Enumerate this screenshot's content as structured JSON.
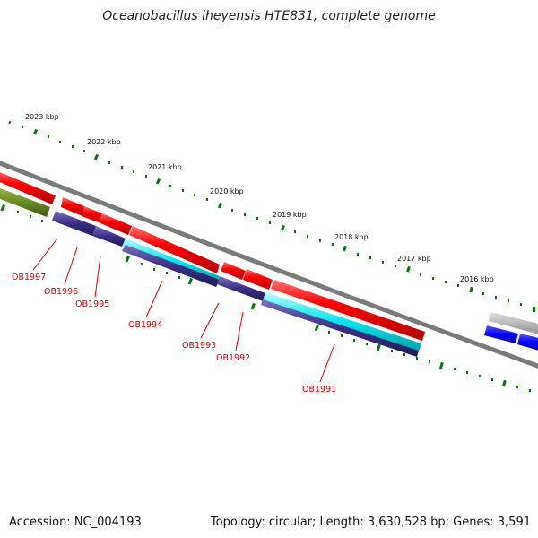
{
  "title": "Oceanobacillus iheyensis HTE831, complete genome",
  "accession": "Accession: NC_004193",
  "summary": "Topology: circular; Length: 3,630,528 bp; Genes: 3,591",
  "scale_labels": [
    "2023 kbp",
    "2022 kbp",
    "2021 kbp",
    "2020 kbp",
    "2019 kbp",
    "2018 kbp",
    "2017 kbp",
    "2016 kbp"
  ],
  "gene_labels": [
    "OB1997",
    "OB1996",
    "OB1995",
    "OB1994",
    "OB1993",
    "OB1992",
    "OB1991"
  ],
  "colors": {
    "forward_cds": "#ff0000",
    "reverse_cds": "#3b2f87",
    "rna": "#00e5ee",
    "other": "#6b8e23",
    "backbone": "#7a7a7a",
    "tick": "#007a00",
    "label": "#d40000",
    "grey_feature": "#b8b8b8",
    "blue_feature": "#0000ff"
  }
}
